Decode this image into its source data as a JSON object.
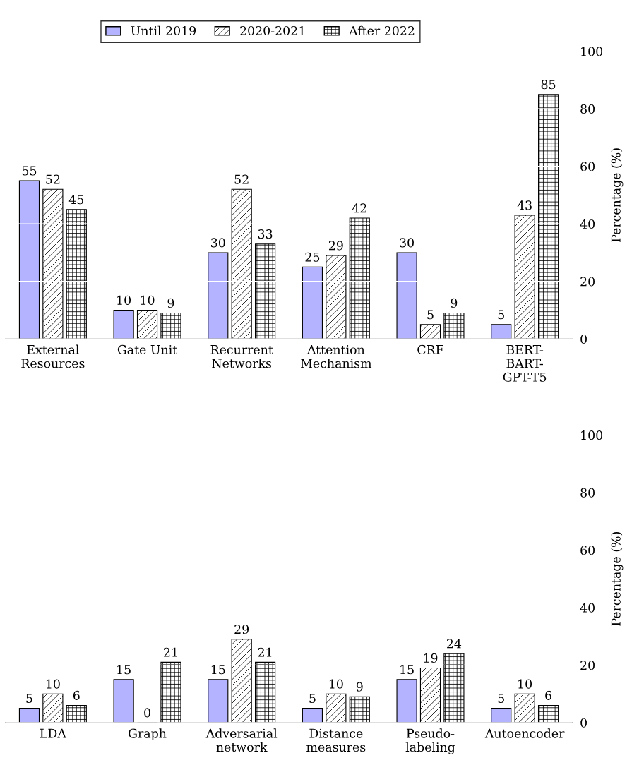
{
  "chart_data": [
    {
      "type": "bar",
      "ylabel": "Percentage (%)",
      "categories": [
        "External\nResources",
        "Gate Unit",
        "Recurrent\nNetworks",
        "Attention\nMechanism",
        "CRF",
        "BERT-\nBART-\nGPT-T5"
      ],
      "series": [
        {
          "name": "Until 2019",
          "color": "#b3b3ff",
          "values": [
            55,
            10,
            30,
            25,
            30,
            5
          ]
        },
        {
          "name": "2020-2021",
          "color": "#000000",
          "values": [
            52,
            10,
            52,
            29,
            5,
            43
          ]
        },
        {
          "name": "After 2022",
          "color": "#000000",
          "values": [
            45,
            9,
            33,
            42,
            9,
            85
          ]
        }
      ],
      "ylim": [
        0,
        100
      ],
      "yticks": [
        0,
        20,
        40,
        60,
        80,
        100
      ],
      "grid": "y",
      "legend": "top",
      "data_labels": true
    },
    {
      "type": "bar",
      "ylabel": "Percentage (%)",
      "categories": [
        "LDA",
        "Graph",
        "Adversarial\nnetwork",
        "Distance\nmeasures",
        "Pseudo-\nlabeling",
        "Autoencoder"
      ],
      "series": [
        {
          "color": "#b3b3ff",
          "values": [
            5,
            15,
            15,
            5,
            15,
            5
          ]
        },
        {
          "color": "#000000",
          "values": [
            10,
            0,
            29,
            10,
            19,
            10
          ]
        },
        {
          "color": "#000000",
          "values": [
            6,
            21,
            21,
            9,
            24,
            6
          ]
        }
      ],
      "ylim": [
        0,
        100
      ],
      "yticks": [
        0,
        20,
        40,
        60,
        80,
        100
      ],
      "grid": "y",
      "data_labels": true
    }
  ]
}
